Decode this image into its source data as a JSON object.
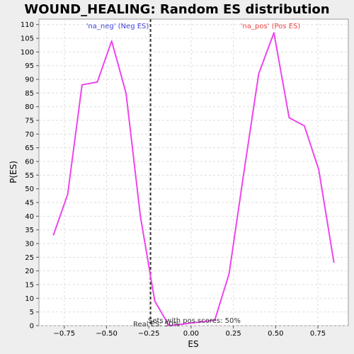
{
  "chart_data": {
    "type": "line",
    "title": "WOUND_HEALING: Random ES distribution",
    "xlabel": "ES",
    "ylabel": "P(ES)",
    "xlim": [
      -0.9,
      0.93
    ],
    "ylim": [
      0,
      112
    ],
    "xticks": [
      -0.75,
      -0.5,
      -0.25,
      0.0,
      0.25,
      0.5,
      0.75
    ],
    "xtick_labels": [
      "−0.75",
      "−0.50",
      "−0.25",
      "0.00",
      "0.25",
      "0.50",
      "0.75"
    ],
    "yticks": [
      0,
      5,
      10,
      15,
      20,
      25,
      30,
      35,
      40,
      45,
      50,
      55,
      60,
      65,
      70,
      75,
      80,
      85,
      90,
      95,
      100,
      105,
      110
    ],
    "grid": true,
    "series": [
      {
        "color": "#ee44ee",
        "x": [
          -0.815,
          -0.73,
          -0.645,
          -0.555,
          -0.47,
          -0.385,
          -0.3,
          -0.215,
          -0.13,
          0.14,
          0.225,
          0.31,
          0.4,
          0.49,
          0.58,
          0.67,
          0.755,
          0.845
        ],
        "y": [
          33,
          48,
          88,
          89,
          104,
          85,
          40,
          9,
          0,
          2,
          19,
          55,
          92,
          107,
          76,
          73,
          57,
          23
        ]
      }
    ],
    "vline": {
      "x": -0.24,
      "style": "dashed",
      "color": "#333333"
    },
    "annotations": {
      "neg": {
        "text": "'na_neg' (Neg ES)",
        "color": "#4444dd"
      },
      "pos": {
        "text": "'na_pos' (Pos ES)",
        "color": "#ee4444"
      },
      "sets_pos": "Sets with pos scores: 50%",
      "real_es": "Real ES: 50%"
    }
  }
}
